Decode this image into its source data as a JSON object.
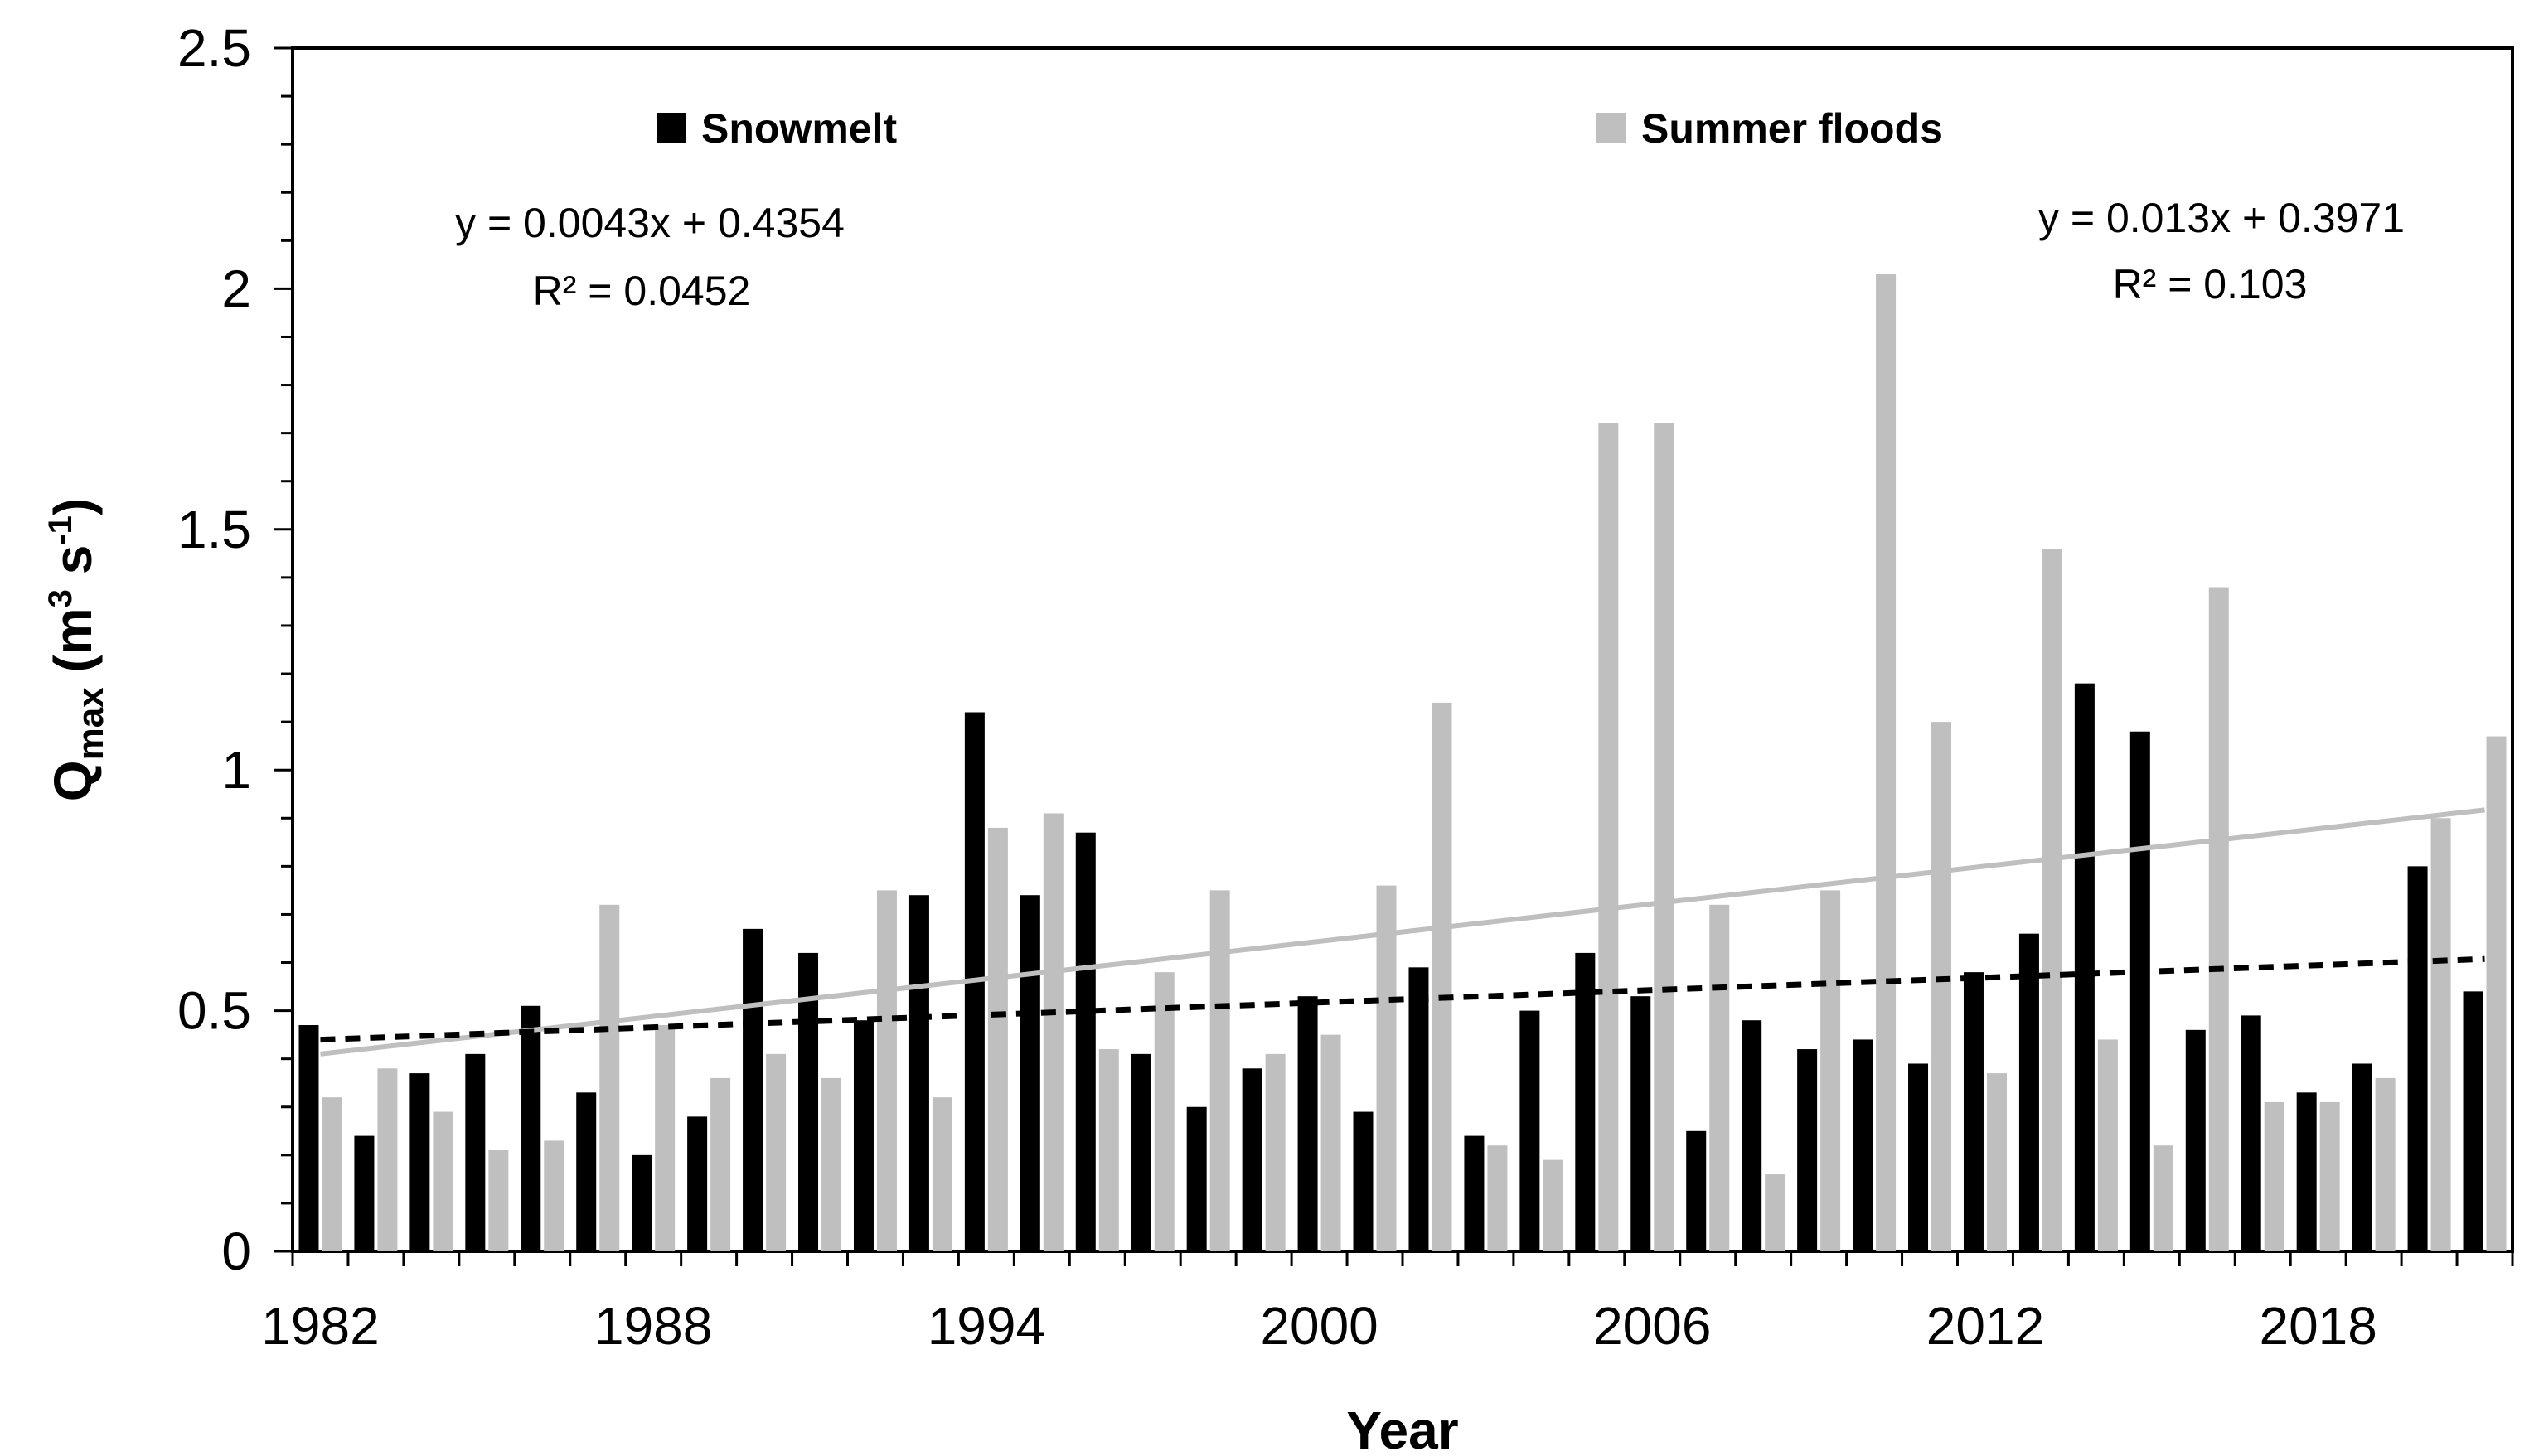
{
  "chart_data": {
    "type": "bar",
    "title": "",
    "xlabel": "Year",
    "ylabel": {
      "main": "Q",
      "sub": "max",
      "unit_open": " (m",
      "sup1": "3",
      "unit_mid": " s",
      "sup2": "-1",
      "unit_close": ")"
    },
    "ylim": [
      0,
      2.5
    ],
    "y_ticks": [
      "0",
      "0.5",
      "1",
      "1.5",
      "2",
      "2.5"
    ],
    "x_tick_labels": [
      "1982",
      "1988",
      "1994",
      "2000",
      "2006",
      "2012",
      "2018"
    ],
    "categories": [
      1982,
      1983,
      1984,
      1985,
      1986,
      1987,
      1988,
      1989,
      1990,
      1991,
      1992,
      1993,
      1994,
      1995,
      1996,
      1997,
      1998,
      1999,
      2000,
      2001,
      2002,
      2003,
      2004,
      2005,
      2006,
      2007,
      2008,
      2009,
      2010,
      2011,
      2012,
      2013,
      2014,
      2015,
      2016,
      2017,
      2018,
      2019,
      2020,
      2021
    ],
    "series": [
      {
        "name": "Snowmelt",
        "color": "#000000",
        "values": [
          0.47,
          0.24,
          0.37,
          0.41,
          0.51,
          0.33,
          0.2,
          0.28,
          0.67,
          0.62,
          0.48,
          0.74,
          1.12,
          0.74,
          0.87,
          0.41,
          0.3,
          0.38,
          0.53,
          0.29,
          0.59,
          0.24,
          0.5,
          0.62,
          0.53,
          0.25,
          0.48,
          0.42,
          0.44,
          0.39,
          0.58,
          0.66,
          1.18,
          1.08,
          0.46,
          0.49,
          0.33,
          0.39,
          0.8,
          0.54
        ]
      },
      {
        "name": "Summer floods",
        "color": "#bfbfbf",
        "values": [
          0.32,
          0.38,
          0.29,
          0.21,
          0.23,
          0.72,
          0.47,
          0.36,
          0.41,
          0.36,
          0.75,
          0.32,
          0.88,
          0.91,
          0.42,
          0.58,
          0.75,
          0.41,
          0.45,
          0.76,
          1.14,
          0.22,
          0.19,
          1.72,
          1.72,
          0.72,
          0.16,
          0.75,
          2.03,
          1.1,
          0.37,
          1.46,
          0.44,
          0.22,
          1.38,
          0.31,
          0.31,
          0.36,
          0.9,
          1.07
        ]
      }
    ],
    "trendlines": [
      {
        "series": "Snowmelt",
        "style": "dashed",
        "color": "#000000",
        "start": [
          1982,
          0.4397
        ],
        "end": [
          2021,
          0.6074
        ],
        "equation": "y = 0.0043x + 0.4354",
        "r2": "R² = 0.0452"
      },
      {
        "series": "Summer floods",
        "style": "solid",
        "color": "#bfbfbf",
        "start": [
          1982,
          0.4101
        ],
        "end": [
          2021,
          0.9171
        ],
        "equation": "y = 0.013x + 0.3971",
        "r2": "R² = 0.103"
      }
    ]
  }
}
